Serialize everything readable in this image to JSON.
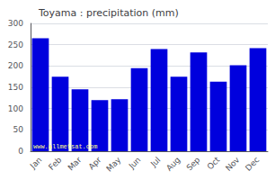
{
  "chart_data": {
    "type": "bar",
    "title": "Toyama : precipitation (mm)",
    "categories": [
      "Jan",
      "Feb",
      "Mar",
      "Apr",
      "May",
      "Jun",
      "Jul",
      "Aug",
      "Sep",
      "Oct",
      "Nov",
      "Dec"
    ],
    "values": [
      265,
      175,
      145,
      120,
      122,
      195,
      240,
      175,
      232,
      163,
      202,
      242
    ],
    "color": "#0000DD",
    "ylim": [
      0,
      300
    ],
    "yticks": [
      0,
      50,
      100,
      150,
      200,
      250,
      300
    ],
    "grid": true,
    "annotations": [
      "www.allmetsat.com"
    ]
  }
}
